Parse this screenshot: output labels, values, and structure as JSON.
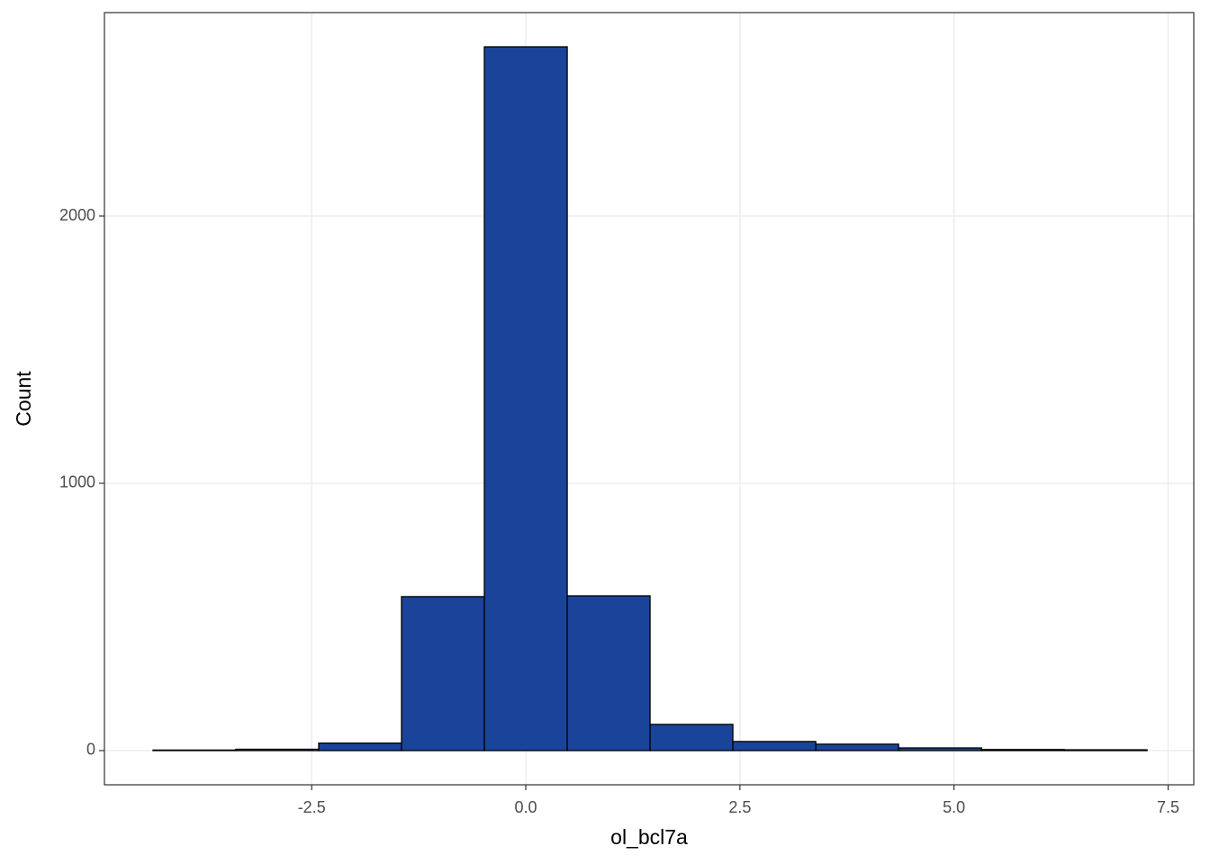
{
  "chart_data": {
    "type": "histogram",
    "x_label": "ol_bcl7a",
    "y_label": "Count",
    "bins": [
      -4.353,
      -3.386,
      -2.418,
      -1.451,
      -0.484,
      0.484,
      1.451,
      2.418,
      3.386,
      4.353,
      5.321,
      6.288,
      7.255
    ],
    "counts": [
      2,
      5,
      28,
      576,
      2633,
      579,
      98,
      34,
      24,
      10,
      4,
      3
    ],
    "color": "#1a4499",
    "xlim": [
      -4.92,
      7.8
    ],
    "ylim": [
      -128,
      2761
    ],
    "xticks": [
      -2.5,
      {
        "value": 0,
        "label": "0.0"
      },
      2.5,
      {
        "value": 5,
        "label": "5.0"
      },
      7.5
    ],
    "yticks": [
      0,
      1000,
      2000
    ],
    "grid": true
  }
}
